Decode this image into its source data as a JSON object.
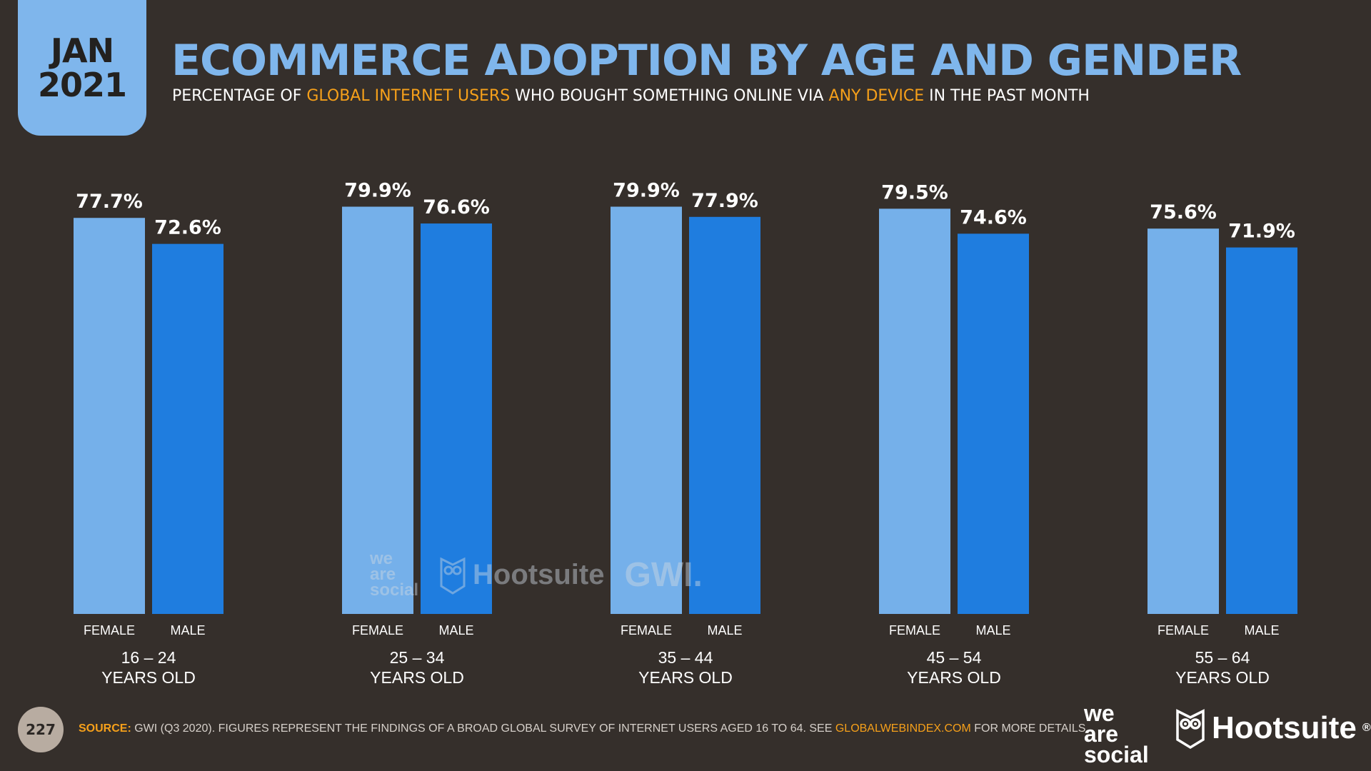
{
  "header": {
    "date_month": "JAN",
    "date_year": "2021",
    "title": "ECOMMERCE ADOPTION BY AGE AND GENDER",
    "subtitle_parts": {
      "p1": "PERCENTAGE OF ",
      "h1": "GLOBAL INTERNET USERS",
      "p2": " WHO BOUGHT SOMETHING ONLINE VIA ",
      "h2": "ANY DEVICE",
      "p3": " IN THE PAST MONTH"
    }
  },
  "colors": {
    "background": "#352f2b",
    "accent": "#7fb6ec",
    "highlight": "#f6a01a",
    "female_bar": "#75b0ea",
    "male_bar": "#1f7ddf"
  },
  "chart_data": {
    "type": "bar",
    "categories": [
      "16 – 24\nYEARS OLD",
      "25 – 34\nYEARS OLD",
      "35 – 44\nYEARS OLD",
      "45 – 54\nYEARS OLD",
      "55 – 64\nYEARS OLD"
    ],
    "category_lines": [
      [
        "16 – 24",
        "YEARS OLD"
      ],
      [
        "25 – 34",
        "YEARS OLD"
      ],
      [
        "35 – 44",
        "YEARS OLD"
      ],
      [
        "45 – 54",
        "YEARS OLD"
      ],
      [
        "55 – 64",
        "YEARS OLD"
      ]
    ],
    "series": [
      {
        "name": "FEMALE",
        "values": [
          77.7,
          79.9,
          79.9,
          79.5,
          75.6
        ],
        "labels": [
          "77.7%",
          "79.9%",
          "79.9%",
          "79.5%",
          "75.6%"
        ]
      },
      {
        "name": "MALE",
        "values": [
          72.6,
          76.6,
          77.9,
          74.6,
          71.9
        ],
        "labels": [
          "72.6%",
          "76.6%",
          "77.9%",
          "74.6%",
          "71.9%"
        ]
      }
    ],
    "ylim": [
      0,
      100
    ]
  },
  "watermark": {
    "social_lines": [
      "we",
      "are",
      "social"
    ],
    "hootsuite": "Hootsuite",
    "gwi": "GWI."
  },
  "footer": {
    "page_number": "227",
    "source_label": "SOURCE:",
    "source_text": " GWI (Q3 2020). FIGURES REPRESENT THE FINDINGS OF A BROAD GLOBAL SURVEY OF INTERNET USERS AGED 16 TO 64. SEE ",
    "source_link": "GLOBALWEBINDEX.COM",
    "source_tail": " FOR MORE DETAILS.",
    "logo_social_lines": [
      "we",
      "are",
      "social"
    ],
    "logo_hootsuite": "Hootsuite",
    "logo_hootsuite_mark": "®"
  }
}
